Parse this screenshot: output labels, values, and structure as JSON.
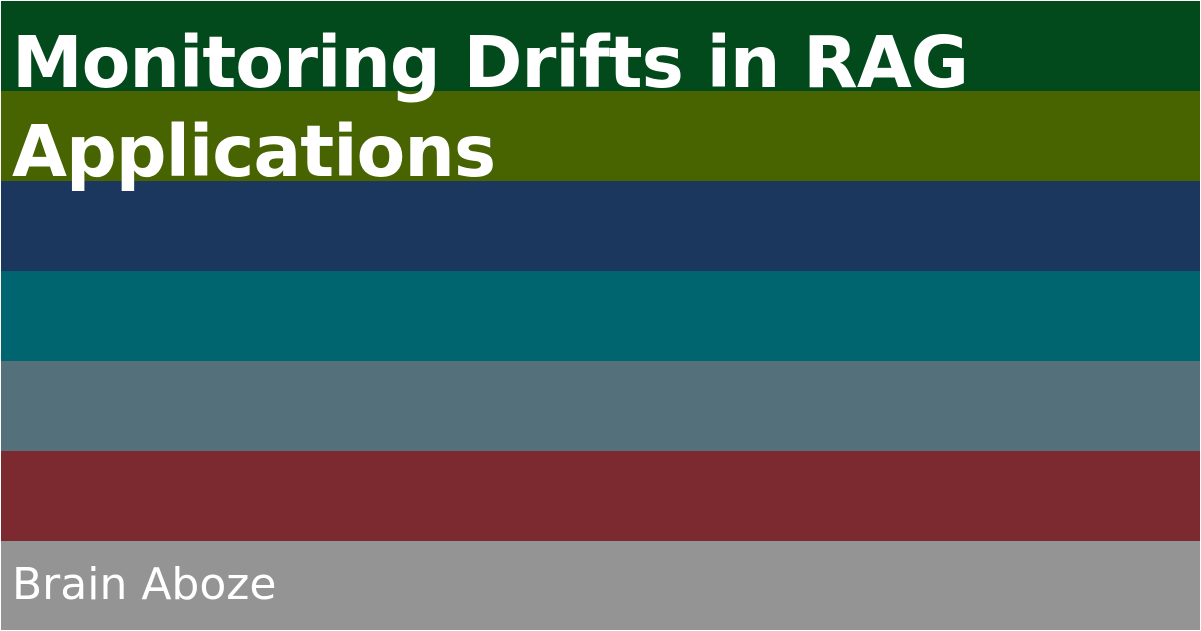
{
  "title": "Monitoring Drifts in RAG Applications",
  "author": "Brain Aboze",
  "stripe_colors": [
    "#02491c",
    "#476400",
    "#1c375d",
    "#016570",
    "#54707b",
    "#7c2a2f",
    "#949494"
  ],
  "text_color": "#ffffff"
}
